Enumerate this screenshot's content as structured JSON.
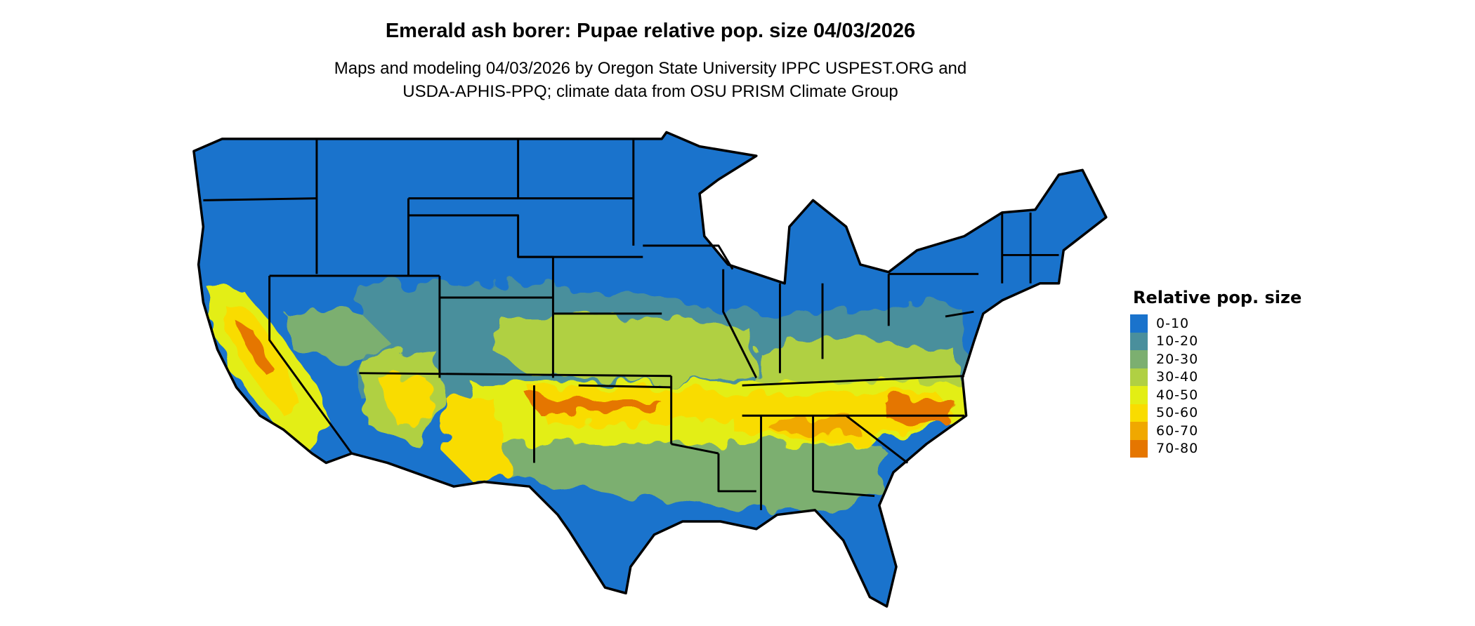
{
  "header": {
    "title": "Emerald ash borer: Pupae relative pop. size 04/03/2026",
    "subtitle_line1": "Maps and modeling 04/03/2026 by Oregon State University IPPC USPEST.ORG and",
    "subtitle_line2": "USDA-APHIS-PPQ; climate data from OSU PRISM Climate Group"
  },
  "chart_data": {
    "type": "heatmap",
    "title": "Emerald ash borer: Pupae relative pop. size 04/03/2026",
    "region": "Contiguous United States",
    "legend_title": "Relative pop. size",
    "legend_position": "right",
    "bins": [
      {
        "label": "0-10",
        "color": "#1a73cc"
      },
      {
        "label": "10-20",
        "color": "#4a8f9c"
      },
      {
        "label": "20-30",
        "color": "#7caf70"
      },
      {
        "label": "30-40",
        "color": "#b0d043"
      },
      {
        "label": "40-50",
        "color": "#e3ee14"
      },
      {
        "label": "50-60",
        "color": "#f9dc00"
      },
      {
        "label": "60-70",
        "color": "#f0a800"
      },
      {
        "label": "70-80",
        "color": "#e57600"
      }
    ]
  }
}
